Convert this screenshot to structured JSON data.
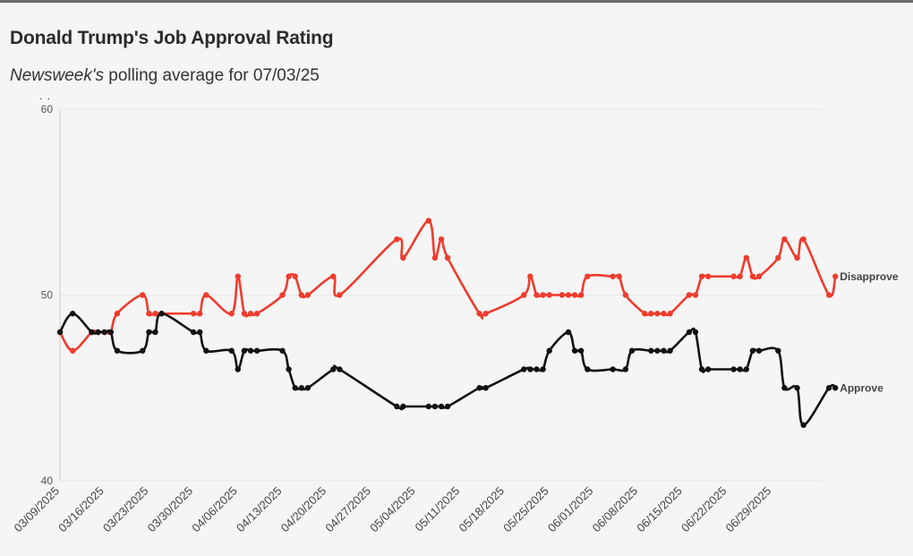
{
  "header": {
    "title": "Donald Trump's Job Approval Rating",
    "subtitle_italic": "Newsweek's",
    "subtitle_rest": " polling average for 07/03/25",
    "dots": ". ."
  },
  "colors": {
    "approve": "#111111",
    "disapprove": "#ef3b2c",
    "grid": "#e6e6e6",
    "axis": "#cccccc"
  },
  "chart_data": {
    "type": "line",
    "title": "Donald Trump's Job Approval Rating",
    "ylim": [
      40,
      60
    ],
    "yticks": [
      40,
      50,
      60
    ],
    "x_range": [
      "2025-03-09",
      "2025-07-03"
    ],
    "xticks": [
      "03/09/2025",
      "03/16/2025",
      "03/23/2025",
      "03/30/2025",
      "04/06/2025",
      "04/13/2025",
      "04/20/2025",
      "04/27/2025",
      "05/04/2025",
      "05/11/2025",
      "05/18/2025",
      "05/25/2025",
      "06/01/2025",
      "06/08/2025",
      "06/15/2025",
      "06/22/2025",
      "06/29/2025"
    ],
    "grid": true,
    "legend": "inline-right",
    "series": [
      {
        "name": "Disapprove",
        "points": [
          [
            "2025-03-09",
            48
          ],
          [
            "2025-03-11",
            47
          ],
          [
            "2025-03-14",
            48
          ],
          [
            "2025-03-15",
            48
          ],
          [
            "2025-03-16",
            48
          ],
          [
            "2025-03-17",
            48
          ],
          [
            "2025-03-18",
            49
          ],
          [
            "2025-03-22",
            50
          ],
          [
            "2025-03-23",
            49
          ],
          [
            "2025-03-24",
            49
          ],
          [
            "2025-03-25",
            49
          ],
          [
            "2025-03-30",
            49
          ],
          [
            "2025-03-31",
            49
          ],
          [
            "2025-04-01",
            50
          ],
          [
            "2025-04-05",
            49
          ],
          [
            "2025-04-06",
            51
          ],
          [
            "2025-04-07",
            49
          ],
          [
            "2025-04-08",
            49
          ],
          [
            "2025-04-09",
            49
          ],
          [
            "2025-04-13",
            50
          ],
          [
            "2025-04-14",
            51
          ],
          [
            "2025-04-15",
            51
          ],
          [
            "2025-04-16",
            50
          ],
          [
            "2025-04-17",
            50
          ],
          [
            "2025-04-21",
            51
          ],
          [
            "2025-04-22",
            50
          ],
          [
            "2025-05-01",
            53
          ],
          [
            "2025-05-02",
            52
          ],
          [
            "2025-05-06",
            54
          ],
          [
            "2025-05-07",
            52
          ],
          [
            "2025-05-08",
            53
          ],
          [
            "2025-05-09",
            52
          ],
          [
            "2025-05-14",
            49
          ],
          [
            "2025-05-15",
            49
          ],
          [
            "2025-05-21",
            50
          ],
          [
            "2025-05-22",
            51
          ],
          [
            "2025-05-23",
            50
          ],
          [
            "2025-05-24",
            50
          ],
          [
            "2025-05-25",
            50
          ],
          [
            "2025-05-27",
            50
          ],
          [
            "2025-05-28",
            50
          ],
          [
            "2025-05-29",
            50
          ],
          [
            "2025-05-30",
            50
          ],
          [
            "2025-05-31",
            51
          ],
          [
            "2025-06-04",
            51
          ],
          [
            "2025-06-05",
            51
          ],
          [
            "2025-06-06",
            50
          ],
          [
            "2025-06-09",
            49
          ],
          [
            "2025-06-10",
            49
          ],
          [
            "2025-06-11",
            49
          ],
          [
            "2025-06-12",
            49
          ],
          [
            "2025-06-13",
            49
          ],
          [
            "2025-06-16",
            50
          ],
          [
            "2025-06-17",
            50
          ],
          [
            "2025-06-18",
            51
          ],
          [
            "2025-06-19",
            51
          ],
          [
            "2025-06-23",
            51
          ],
          [
            "2025-06-24",
            51
          ],
          [
            "2025-06-25",
            52
          ],
          [
            "2025-06-26",
            51
          ],
          [
            "2025-06-27",
            51
          ],
          [
            "2025-06-30",
            52
          ],
          [
            "2025-07-01",
            53
          ],
          [
            "2025-07-03",
            52
          ],
          [
            "2025-07-04",
            53
          ],
          [
            "2025-07-08",
            50
          ],
          [
            "2025-07-09",
            51
          ]
        ]
      },
      {
        "name": "Approve",
        "points": [
          [
            "2025-03-09",
            48
          ],
          [
            "2025-03-11",
            49
          ],
          [
            "2025-03-14",
            48
          ],
          [
            "2025-03-15",
            48
          ],
          [
            "2025-03-16",
            48
          ],
          [
            "2025-03-17",
            48
          ],
          [
            "2025-03-18",
            47
          ],
          [
            "2025-03-22",
            47
          ],
          [
            "2025-03-23",
            48
          ],
          [
            "2025-03-24",
            48
          ],
          [
            "2025-03-25",
            49
          ],
          [
            "2025-03-30",
            48
          ],
          [
            "2025-03-31",
            48
          ],
          [
            "2025-04-01",
            47
          ],
          [
            "2025-04-05",
            47
          ],
          [
            "2025-04-06",
            46
          ],
          [
            "2025-04-07",
            47
          ],
          [
            "2025-04-08",
            47
          ],
          [
            "2025-04-09",
            47
          ],
          [
            "2025-04-13",
            47
          ],
          [
            "2025-04-14",
            46
          ],
          [
            "2025-04-15",
            45
          ],
          [
            "2025-04-16",
            45
          ],
          [
            "2025-04-17",
            45
          ],
          [
            "2025-04-21",
            46
          ],
          [
            "2025-04-22",
            46
          ],
          [
            "2025-05-01",
            44
          ],
          [
            "2025-05-02",
            44
          ],
          [
            "2025-05-06",
            44
          ],
          [
            "2025-05-07",
            44
          ],
          [
            "2025-05-08",
            44
          ],
          [
            "2025-05-09",
            44
          ],
          [
            "2025-05-14",
            45
          ],
          [
            "2025-05-15",
            45
          ],
          [
            "2025-05-21",
            46
          ],
          [
            "2025-05-22",
            46
          ],
          [
            "2025-05-23",
            46
          ],
          [
            "2025-05-24",
            46
          ],
          [
            "2025-05-25",
            47
          ],
          [
            "2025-05-28",
            48
          ],
          [
            "2025-05-29",
            47
          ],
          [
            "2025-05-30",
            47
          ],
          [
            "2025-05-31",
            46
          ],
          [
            "2025-06-04",
            46
          ],
          [
            "2025-06-06",
            46
          ],
          [
            "2025-06-07",
            47
          ],
          [
            "2025-06-10",
            47
          ],
          [
            "2025-06-11",
            47
          ],
          [
            "2025-06-12",
            47
          ],
          [
            "2025-06-13",
            47
          ],
          [
            "2025-06-16",
            48
          ],
          [
            "2025-06-17",
            48
          ],
          [
            "2025-06-18",
            46
          ],
          [
            "2025-06-19",
            46
          ],
          [
            "2025-06-23",
            46
          ],
          [
            "2025-06-24",
            46
          ],
          [
            "2025-06-25",
            46
          ],
          [
            "2025-06-26",
            47
          ],
          [
            "2025-06-27",
            47
          ],
          [
            "2025-06-30",
            47
          ],
          [
            "2025-07-01",
            45
          ],
          [
            "2025-07-03",
            45
          ],
          [
            "2025-07-04",
            43
          ],
          [
            "2025-07-08",
            45
          ],
          [
            "2025-07-09",
            45
          ]
        ]
      }
    ]
  }
}
